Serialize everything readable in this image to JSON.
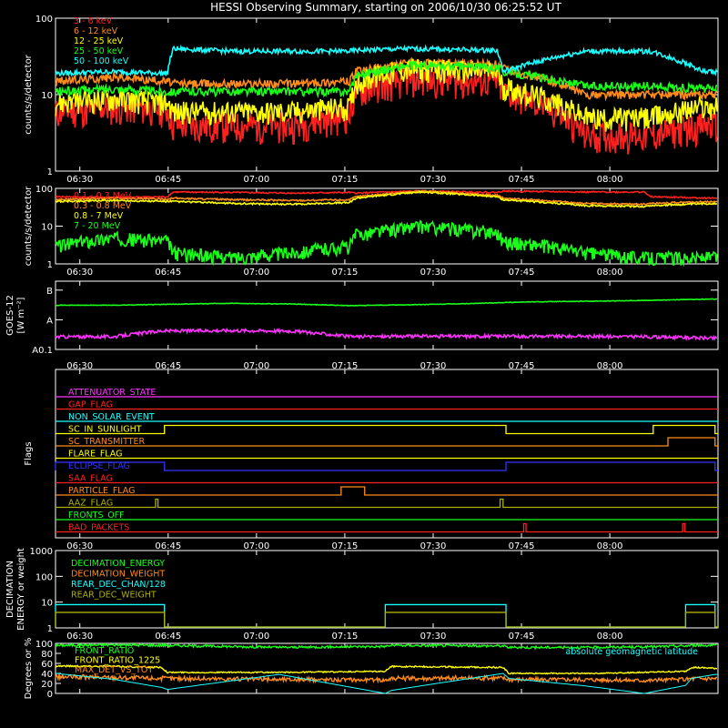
{
  "title": "HESSI Observing Summary, starting on 2006/10/30 06:25:52 UT",
  "time_ticks": [
    "06:30",
    "06:45",
    "07:00",
    "07:15",
    "07:30",
    "07:45",
    "08:00"
  ],
  "panels": [
    {
      "id": "rates",
      "ylabel": "counts/s/detector",
      "yticks": [
        "100",
        "10",
        "1"
      ],
      "legend": [
        {
          "text": "3 - 6 keV",
          "color": "#ff2020"
        },
        {
          "text": "6 - 12 keV",
          "color": "#ff8c1a"
        },
        {
          "text": "12 - 25 keV",
          "color": "#ffff00"
        },
        {
          "text": "25 - 50 keV",
          "color": "#19ff19"
        },
        {
          "text": "50 - 100 keV",
          "color": "#19ffff"
        }
      ]
    },
    {
      "id": "high_energy",
      "ylabel": "counts/s/detector",
      "yticks": [
        "100",
        "10",
        "1"
      ],
      "legend": [
        {
          "text": "0.1 - 0.3 MeV",
          "color": "#ff2020"
        },
        {
          "text": "0.3 - 0.8 MeV",
          "color": "#ff8c1a"
        },
        {
          "text": "0.8 - 7 MeV",
          "color": "#ffff00"
        },
        {
          "text": "7 - 20 MeV",
          "color": "#19ff19"
        }
      ]
    },
    {
      "id": "goes",
      "ylabel_line1": "GOES-12",
      "ylabel_line2": "[W m⁻²]",
      "yticks": [
        "B",
        "A",
        "A0.1"
      ]
    },
    {
      "id": "flags",
      "ylabel": "Flags",
      "legend": [
        {
          "text": "ATTENUATOR_STATE",
          "color": "#ff33ff"
        },
        {
          "text": "GAP_FLAG",
          "color": "#ff2020"
        },
        {
          "text": "NON_SOLAR_EVENT",
          "color": "#19ffff"
        },
        {
          "text": "SC_IN_SUNLIGHT",
          "color": "#ffff00"
        },
        {
          "text": "SC_TRANSMITTER",
          "color": "#ff8c1a"
        },
        {
          "text": "FLARE_FLAG",
          "color": "#ffff00"
        },
        {
          "text": "ECLIPSE_FLAG",
          "color": "#3333ff"
        },
        {
          "text": "SAA_FLAG",
          "color": "#ff2020"
        },
        {
          "text": "PARTICLE_FLAG",
          "color": "#ff8c1a"
        },
        {
          "text": "AAZ_FLAG",
          "color": "#b0b000"
        },
        {
          "text": "FRONTS_OFF",
          "color": "#19ff19"
        },
        {
          "text": "BAD_PACKETS",
          "color": "#ff2020"
        }
      ]
    },
    {
      "id": "decimation",
      "ylabel_line1": "DECIMATION",
      "ylabel_line2": "ENERGY or weight",
      "yticks": [
        "1000",
        "100",
        "10",
        "1"
      ],
      "legend": [
        {
          "text": "DECIMATION_ENERGY",
          "color": "#19ff19"
        },
        {
          "text": "DECIMATION_WEIGHT",
          "color": "#ff8c1a"
        },
        {
          "text": "REAR_DEC_CHAN/128",
          "color": "#19ffff"
        },
        {
          "text": "REAR_DEC_WEIGHT",
          "color": "#b0b000"
        }
      ]
    },
    {
      "id": "front_ratio",
      "ylabel": "Degrees or %",
      "yticks": [
        "100",
        "80",
        "60",
        "40",
        "20",
        "0"
      ],
      "legend": [
        {
          "text": "FRONT_RATIO",
          "color": "#19ff19"
        },
        {
          "text": "FRONT_RATIO_1225",
          "color": "#ffff00"
        },
        {
          "text": "MAX_DET_VS_TOT",
          "color": "#ff8c1a"
        }
      ],
      "annotation": {
        "text": "absolute geomagnetic latitude",
        "color": "#19ffff"
      }
    }
  ],
  "chart_data": [
    {
      "type": "line",
      "title": "HESSI Observing Summary, starting on 2006/10/30 06:25:52 UT",
      "ylabel": "counts/s/detector",
      "yscale": "log",
      "ylim": [
        1,
        100
      ],
      "x": [
        0,
        10,
        19,
        20,
        30,
        40,
        50,
        51,
        60,
        75,
        76,
        90,
        100,
        101,
        110,
        112
      ],
      "xunit": "minutes after 06:25:52 UT (ticks every 15 min from 06:30)",
      "series": [
        {
          "name": "3 - 6 keV",
          "values": [
            6,
            7,
            6.5,
            4,
            4,
            4,
            5.5,
            11,
            16,
            15,
            11,
            3,
            3,
            3,
            4,
            4
          ]
        },
        {
          "name": "6 - 12 keV",
          "values": [
            15,
            17,
            15,
            14,
            14,
            14,
            15,
            20,
            26,
            25,
            22,
            10,
            10,
            10,
            10,
            10
          ]
        },
        {
          "name": "12 - 25 keV",
          "values": [
            8,
            9,
            8,
            6,
            6,
            6,
            7,
            15,
            22,
            20,
            13,
            5,
            5,
            5,
            7,
            7
          ]
        },
        {
          "name": "25 - 50 keV",
          "values": [
            11,
            12,
            11,
            11,
            11,
            11,
            11,
            18,
            24,
            23,
            20,
            13,
            13,
            13,
            12,
            12
          ]
        },
        {
          "name": "50 - 100 keV",
          "values": [
            19,
            20,
            19,
            40,
            37,
            37,
            37,
            38,
            40,
            38,
            20,
            37,
            37,
            37,
            20,
            20
          ]
        }
      ]
    },
    {
      "type": "line",
      "ylabel": "counts/s/detector",
      "yscale": "log",
      "ylim": [
        1,
        100
      ],
      "x": [
        0,
        10,
        19,
        20,
        30,
        40,
        50,
        51,
        62,
        75,
        76,
        90,
        100,
        101,
        112
      ],
      "series": [
        {
          "name": "0.1 - 0.3 MeV",
          "values": [
            60,
            58,
            60,
            80,
            78,
            75,
            78,
            75,
            85,
            78,
            85,
            80,
            80,
            60,
            55
          ]
        },
        {
          "name": "0.3 - 0.8 MeV",
          "values": [
            50,
            55,
            52,
            55,
            50,
            48,
            50,
            60,
            85,
            65,
            55,
            40,
            38,
            40,
            45
          ]
        },
        {
          "name": "0.8 - 7 MeV",
          "values": [
            45,
            48,
            45,
            45,
            40,
            38,
            42,
            55,
            80,
            60,
            50,
            35,
            33,
            35,
            40
          ]
        },
        {
          "name": "7 - 20 MeV",
          "values": [
            3,
            5,
            4,
            2,
            1.5,
            2,
            3,
            6,
            10,
            7,
            4,
            2,
            1.5,
            1.5,
            1.5
          ]
        }
      ]
    },
    {
      "type": "line",
      "ylabel": "GOES-12 [W m⁻²]",
      "yscale": "log",
      "ylim": [
        1e-09,
        2e-07
      ],
      "x": [
        0,
        10,
        18,
        30,
        40,
        50,
        60,
        70,
        80,
        90,
        100,
        112
      ],
      "series": [
        {
          "name": "",
          "color": "#19ff19",
          "values": [
            3.1e-08,
            3.1e-08,
            3.3e-08,
            3.6e-08,
            3.4e-08,
            3e-08,
            3.2e-08,
            3.5e-08,
            4e-08,
            4.2e-08,
            4.5e-08,
            5e-08
          ]
        },
        {
          "name": "",
          "color": "#ff33ff",
          "values": [
            2.7e-09,
            2.7e-09,
            4.2e-09,
            4.4e-09,
            4.2e-09,
            2.7e-09,
            2.8e-09,
            2.8e-09,
            2.8e-09,
            2.8e-09,
            2.7e-09,
            2.4e-09
          ]
        }
      ]
    },
    {
      "type": "line",
      "ylabel": "Flags",
      "series": [
        {
          "name": "SC_IN_SUNLIGHT",
          "segments_on": [
            [
              18.5,
              76.5
            ],
            [
              101.5,
              112
            ]
          ]
        },
        {
          "name": "SC_TRANSMITTER",
          "segments_on": [
            [
              104,
              112
            ]
          ]
        },
        {
          "name": "ECLIPSE_FLAG",
          "segments_on": [
            [
              0,
              18.5
            ],
            [
              76.5,
              112
            ]
          ]
        },
        {
          "name": "PARTICLE_FLAG",
          "segments_on": [
            [
              48.5,
              52.5
            ]
          ]
        },
        {
          "name": "AAZ_FLAG",
          "segments_on": [
            [
              17,
              17.4
            ],
            [
              75.5,
              76
            ]
          ]
        },
        {
          "name": "BAD_PACKETS",
          "segments_on": [
            [
              79.5,
              79.9
            ],
            [
              106.5,
              106.9
            ]
          ]
        }
      ]
    },
    {
      "type": "line",
      "ylabel": "DECIMATION ENERGY or weight",
      "yscale": "log",
      "ylim": [
        1,
        1000
      ],
      "series": [
        {
          "name": "REAR_DEC_CHAN/128",
          "segments_on": [
            [
              0,
              18.5
            ],
            [
              56,
              76.5
            ],
            [
              107,
              112
            ]
          ],
          "on_value": 8,
          "off_value": 1
        },
        {
          "name": "REAR_DEC_WEIGHT",
          "segments_on": [
            [
              0,
              18.5
            ],
            [
              56,
              76.5
            ],
            [
              107,
              112
            ]
          ],
          "on_value": 4,
          "off_value": 1
        }
      ]
    },
    {
      "type": "line",
      "ylabel": "Degrees or %",
      "ylim": [
        0,
        100
      ],
      "x": [
        0,
        10,
        18,
        19,
        38,
        56,
        57,
        76,
        77,
        90,
        100,
        107,
        108,
        112
      ],
      "series": [
        {
          "name": "FRONT_RATIO",
          "values": [
            96,
            97,
            96,
            96,
            92,
            94,
            96,
            95,
            92,
            92,
            93,
            95,
            96,
            96
          ]
        },
        {
          "name": "FRONT_RATIO_1225",
          "values": [
            55,
            54,
            52,
            42,
            42,
            44,
            54,
            52,
            40,
            40,
            42,
            44,
            52,
            50
          ]
        },
        {
          "name": "MAX_DET_VS_TOT",
          "values": [
            33,
            32,
            30,
            30,
            28,
            27,
            30,
            31,
            28,
            28,
            26,
            28,
            30,
            30
          ]
        },
        {
          "name": "absolute geomagnetic latitude",
          "values": [
            40,
            28,
            12,
            8,
            38,
            0,
            6,
            40,
            30,
            15,
            0,
            16,
            30,
            38
          ]
        }
      ]
    }
  ]
}
